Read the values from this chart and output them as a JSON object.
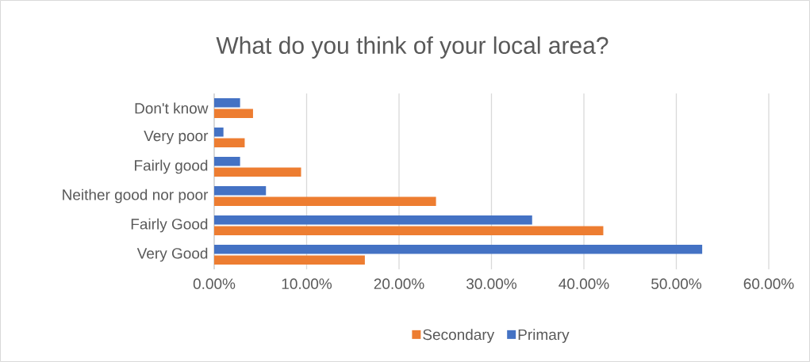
{
  "chart_data": {
    "type": "bar",
    "orientation": "horizontal",
    "title": "What do you think of your local area?",
    "categories": [
      "Don't know",
      "Very poor",
      "Fairly good",
      "Neither good nor poor",
      "Fairly Good",
      "Very Good"
    ],
    "series": [
      {
        "name": "Secondary",
        "color": "#ed7d31",
        "values": [
          4.2,
          3.3,
          9.4,
          24.0,
          42.1,
          16.3
        ]
      },
      {
        "name": "Primary",
        "color": "#4472c4",
        "values": [
          2.8,
          1.0,
          2.8,
          5.6,
          34.4,
          52.8
        ]
      }
    ],
    "xlim": [
      0,
      60
    ],
    "xticks": [
      {
        "value": 0,
        "label": "0.00%"
      },
      {
        "value": 10,
        "label": "10.00%"
      },
      {
        "value": 20,
        "label": "20.00%"
      },
      {
        "value": 30,
        "label": "30.00%"
      },
      {
        "value": 40,
        "label": "40.00%"
      },
      {
        "value": 50,
        "label": "50.00%"
      },
      {
        "value": 60,
        "label": "60.00%"
      }
    ],
    "grid": "x",
    "legend": "bottom"
  }
}
